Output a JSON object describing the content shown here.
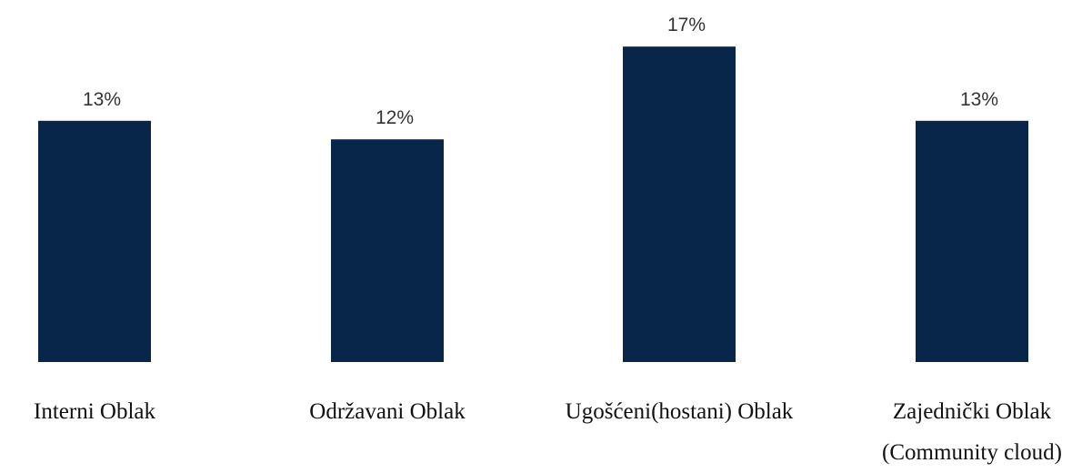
{
  "chart_data": {
    "type": "bar",
    "title": "",
    "xlabel": "",
    "ylabel": "",
    "ylim": [
      0,
      17
    ],
    "grid": false,
    "legend": "none",
    "bar_color": "#08264a",
    "categories": [
      "Interni Oblak",
      "Održavani Oblak",
      "Ugošćeni(hostani) Oblak",
      "Zajednički Oblak\n(Community cloud)"
    ],
    "values": [
      13,
      12,
      17,
      13
    ],
    "value_labels": [
      "13%",
      "12%",
      "17%",
      "13%"
    ]
  }
}
